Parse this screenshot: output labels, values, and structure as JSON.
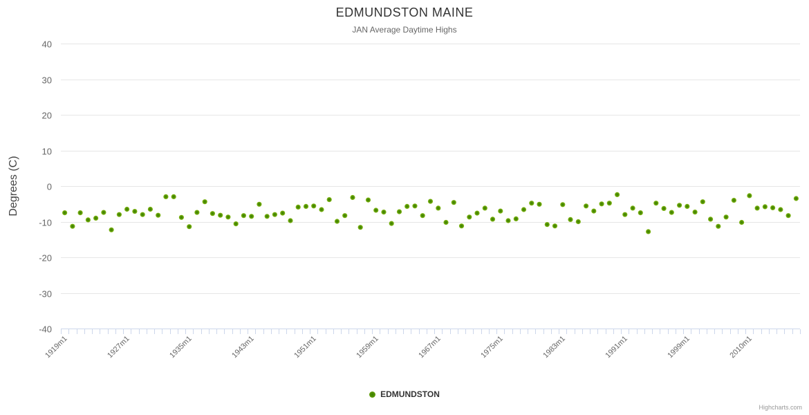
{
  "header": {
    "title": "EDMUNDSTON MAINE",
    "subtitle": "JAN Average Daytime Highs"
  },
  "legend": {
    "series_label": "EDMUNDSTON"
  },
  "credits": {
    "label": "Highcharts.com"
  },
  "colors": {
    "marker_center": "#3a7d02",
    "marker_mid": "#559404",
    "marker_edge": "#8cbe1e",
    "grid_line": "#e6e6e6",
    "axis_line": "#ccd6eb",
    "tick_mark": "#ccd6eb",
    "axis_label_text": "#666666",
    "axis_title_text": "#444444"
  },
  "chart_data": {
    "type": "scatter",
    "title": "EDMUNDSTON MAINE",
    "subtitle": "JAN Average Daytime Highs",
    "xlabel": "",
    "ylabel": "Degrees (C)",
    "ylim": [
      -40,
      40
    ],
    "y_ticks": [
      40,
      30,
      20,
      10,
      0,
      -10,
      -20,
      -30,
      -40
    ],
    "grid": "horizontal",
    "legend_position": "bottom",
    "x_label_interval": 8,
    "x_labels_shown": [
      "1919m1",
      "1927m1",
      "1935m1",
      "1943m1",
      "1951m1",
      "1959m1",
      "1967m1",
      "1975m1",
      "1983m1",
      "1991m1",
      "1999m1",
      "2010m1"
    ],
    "categories": [
      "1919m1",
      "1920m1",
      "1921m1",
      "1922m1",
      "1923m1",
      "1924m1",
      "1925m1",
      "1926m1",
      "1927m1",
      "1928m1",
      "1929m1",
      "1930m1",
      "1931m1",
      "1932m1",
      "1933m1",
      "1934m1",
      "1935m1",
      "1936m1",
      "1937m1",
      "1938m1",
      "1939m1",
      "1940m1",
      "1941m1",
      "1942m1",
      "1943m1",
      "1944m1",
      "1945m1",
      "1946m1",
      "1947m1",
      "1948m1",
      "1949m1",
      "1950m1",
      "1951m1",
      "1952m1",
      "1953m1",
      "1954m1",
      "1955m1",
      "1956m1",
      "1957m1",
      "1958m1",
      "1959m1",
      "1960m1",
      "1961m1",
      "1962m1",
      "1963m1",
      "1964m1",
      "1965m1",
      "1966m1",
      "1967m1",
      "1968m1",
      "1969m1",
      "1970m1",
      "1971m1",
      "1972m1",
      "1973m1",
      "1974m1",
      "1975m1",
      "1976m1",
      "1977m1",
      "1978m1",
      "1979m1",
      "1980m1",
      "1981m1",
      "1982m1",
      "1983m1",
      "1984m1",
      "1985m1",
      "1986m1",
      "1987m1",
      "1988m1",
      "1989m1",
      "1990m1",
      "1991m1",
      "1992m1",
      "1993m1",
      "1994m1",
      "1995m1",
      "1996m1",
      "1997m1",
      "1998m1",
      "1999m1",
      "2003m1",
      "2004m1",
      "2005m1",
      "2006m1",
      "2007m1",
      "2008m1",
      "2009m1",
      "2010m1",
      "2011m1",
      "2012m1",
      "2013m1",
      "2014m1",
      "2015m1",
      "2016m1"
    ],
    "series": [
      {
        "name": "EDMUNDSTON",
        "color": "#559404",
        "values": [
          -7.5,
          -11.3,
          -7.5,
          -9.5,
          -9.0,
          -7.4,
          -12.3,
          -8.0,
          -6.5,
          -7.1,
          -8.0,
          -6.5,
          -8.2,
          -3.0,
          -3.0,
          -8.8,
          -11.4,
          -7.4,
          -4.4,
          -7.7,
          -8.2,
          -8.7,
          -10.6,
          -8.3,
          -8.5,
          -5.1,
          -8.5,
          -8.0,
          -7.6,
          -9.7,
          -5.9,
          -5.7,
          -5.6,
          -6.6,
          -3.8,
          -9.9,
          -8.3,
          -3.2,
          -11.6,
          -3.9,
          -6.8,
          -7.3,
          -10.5,
          -7.2,
          -5.7,
          -5.6,
          -8.3,
          -4.3,
          -6.2,
          -10.2,
          -4.6,
          -11.2,
          -8.7,
          -7.6,
          -6.2,
          -9.3,
          -7.0,
          -9.7,
          -9.2,
          -6.6,
          -4.8,
          -5.1,
          -10.8,
          -11.2,
          -5.2,
          -9.4,
          -10.0,
          -5.6,
          -7.0,
          -5.0,
          -4.8,
          -2.4,
          -8.0,
          -6.2,
          -7.5,
          -12.8,
          -4.8,
          -6.3,
          -7.4,
          -5.4,
          -5.7,
          -7.3,
          -4.4,
          -9.3,
          -11.3,
          -8.7,
          -4.0,
          -10.2,
          -2.7,
          -6.2,
          -5.8,
          -6.1,
          -6.6,
          -8.3,
          -3.5
        ]
      }
    ]
  }
}
